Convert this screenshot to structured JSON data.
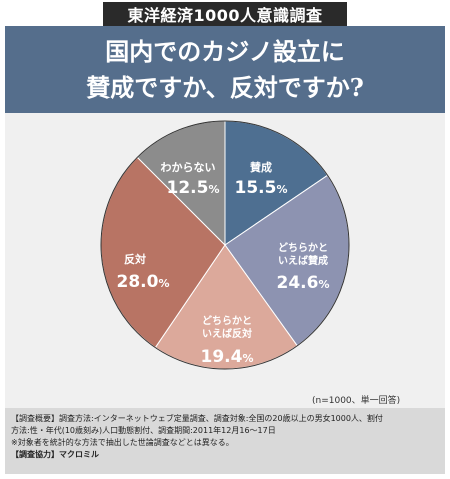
{
  "header": {
    "badge": "東洋経済1000人意識調査",
    "title_line1": "国内でのカジノ設立に",
    "title_line2": "賛成ですか、反対ですか?"
  },
  "chart_data": {
    "type": "pie",
    "start": "12 o'clock",
    "direction": "clockwise",
    "slices": [
      {
        "label": "賛成",
        "value": 15.5,
        "color": "#4e6f91"
      },
      {
        "label": "どちらかといえば賛成",
        "value": 24.6,
        "color": "#8d93b1"
      },
      {
        "label": "どちらかといえば反対",
        "value": 19.4,
        "color": "#dca99b"
      },
      {
        "label": "反対",
        "value": 28.0,
        "color": "#b87464"
      },
      {
        "label": "わからない",
        "value": 12.5,
        "color": "#8c8c8c"
      }
    ]
  },
  "labels": {
    "yes": {
      "name": "賛成",
      "value": "15.5"
    },
    "rather_yes": {
      "line1": "どちらかと",
      "line2": "いえば賛成",
      "value": "24.6"
    },
    "rather_no": {
      "line1": "どちらかと",
      "line2": "いえば反対",
      "value": "19.4"
    },
    "no": {
      "name": "反対",
      "value": "28.0"
    },
    "dk": {
      "name": "わからない",
      "value": "12.5"
    },
    "percent": "%"
  },
  "note": "(n=1000、単一回答)",
  "footer": {
    "line1": "【調査概要】調査方法:インターネットウェブ定量調査、調査対象:全国の20歳以上の男女1000人、割付",
    "line2": "方法:性・年代(10歳刻み)人口動態割付、調査期間:2011年12月16～17日",
    "line3": "※対象者を統計的な方法で抽出した世論調査などとは異なる。",
    "line4": "【調査協力】マクロミル"
  }
}
